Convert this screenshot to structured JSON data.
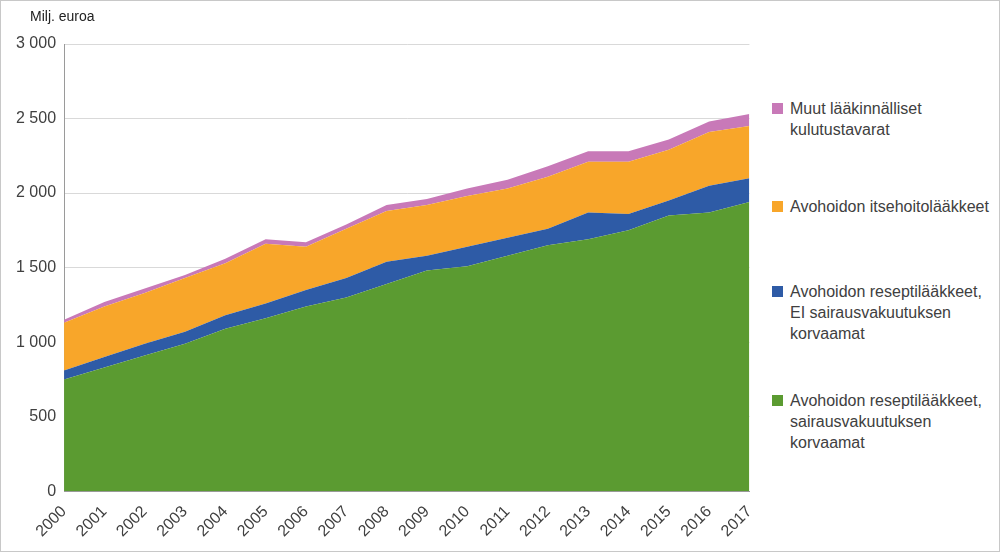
{
  "chart_data": {
    "type": "area",
    "ylabel": "Milj. euroa",
    "stacked": true,
    "grid": true,
    "legend": "right",
    "categories": [
      "2000",
      "2001",
      "2002",
      "2003",
      "2004",
      "2005",
      "2006",
      "2007",
      "2008",
      "2009",
      "2010",
      "2011",
      "2012",
      "2013",
      "2014",
      "2015",
      "2016",
      "2017"
    ],
    "ylim": [
      0,
      3000
    ],
    "yticks": [
      0,
      500,
      {
        "value": 1000,
        "label": "1 000"
      },
      {
        "value": 1500,
        "label": "1 500"
      },
      {
        "value": 2000,
        "label": "2 000"
      },
      {
        "value": 2500,
        "label": "2 500"
      },
      {
        "value": 3000,
        "label": "3 000"
      }
    ],
    "series": [
      {
        "name": "Avohoidon reseptilääkkeet, sairausvakuutuksen korvaamat",
        "color": "#5b9b31",
        "values": [
          750,
          830,
          910,
          990,
          1090,
          1160,
          1240,
          1300,
          1390,
          1480,
          1510,
          1580,
          1650,
          1690,
          1750,
          1850,
          1870,
          1940
        ]
      },
      {
        "name": "Avohoidon reseptilääkkeet, EI sairausvakuutuksen korvaamat",
        "color": "#2e5ba6",
        "values": [
          60,
          70,
          80,
          80,
          90,
          100,
          110,
          130,
          150,
          100,
          130,
          120,
          110,
          180,
          110,
          100,
          180,
          160
        ]
      },
      {
        "name": "Avohoidon itsehoitolääkkeet",
        "color": "#f8a62a",
        "values": [
          320,
          340,
          340,
          360,
          350,
          400,
          290,
          330,
          340,
          340,
          340,
          330,
          350,
          340,
          350,
          340,
          360,
          350
        ]
      },
      {
        "name": "Muut lääkinnälliset kulutustavarat",
        "color": "#c879b8",
        "values": [
          20,
          30,
          30,
          20,
          30,
          30,
          30,
          30,
          40,
          40,
          50,
          60,
          70,
          70,
          70,
          70,
          70,
          80
        ]
      }
    ]
  }
}
